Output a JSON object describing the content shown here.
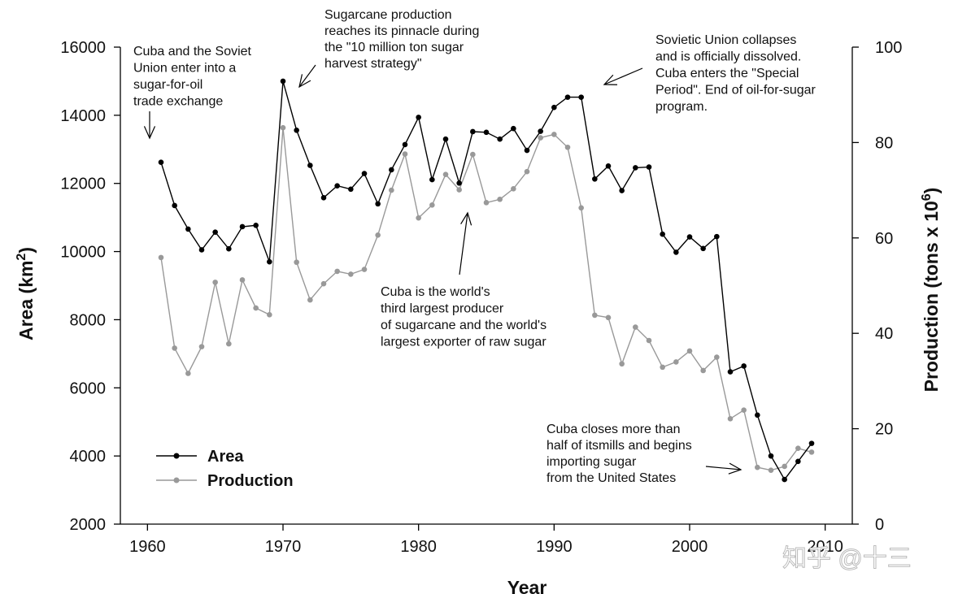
{
  "chart_data": {
    "type": "line",
    "xlabel": "Year",
    "ylabel_left": "Area (km²)",
    "ylabel_left_base": "Area (km",
    "ylabel_left_sup": "2",
    "ylabel_left_end": ")",
    "ylabel_right_base": "Production (tons x 10",
    "ylabel_right_sup": "6",
    "ylabel_right_end": ")",
    "xlim": [
      1958,
      2012
    ],
    "ylim_left": [
      2000,
      16000
    ],
    "ylim_right": [
      0,
      100
    ],
    "xticks": [
      1960,
      1970,
      1980,
      1990,
      2000,
      2010
    ],
    "yticks_left": [
      2000,
      4000,
      6000,
      8000,
      10000,
      12000,
      14000,
      16000
    ],
    "yticks_right": [
      0,
      20,
      40,
      60,
      80,
      100
    ],
    "grid": false,
    "legend_position": "bottom-left",
    "series": [
      {
        "name": "Area",
        "axis": "left",
        "color": "#000000",
        "x": [
          1961,
          1962,
          1963,
          1964,
          1965,
          1966,
          1967,
          1968,
          1969,
          1970,
          1971,
          1972,
          1973,
          1974,
          1975,
          1976,
          1977,
          1978,
          1979,
          1980,
          1981,
          1982,
          1983,
          1984,
          1985,
          1986,
          1987,
          1988,
          1989,
          1990,
          1991,
          1992,
          1993,
          1994,
          1995,
          1996,
          1997,
          1998,
          1999,
          2000,
          2001,
          2002,
          2003,
          2004,
          2005,
          2006,
          2007,
          2008,
          2009
        ],
        "values": [
          12620,
          11350,
          10660,
          10050,
          10570,
          10080,
          10730,
          10770,
          9700,
          15000,
          13560,
          12530,
          11580,
          11930,
          11830,
          12290,
          11400,
          12400,
          13140,
          13940,
          12110,
          13300,
          12010,
          13520,
          13500,
          13300,
          13610,
          12970,
          13530,
          14230,
          14530,
          14530,
          12130,
          12510,
          11790,
          12460,
          12480,
          10510,
          9980,
          10430,
          10090,
          10440,
          6470,
          6640,
          5200,
          4000,
          3310,
          3840,
          4370
        ]
      },
      {
        "name": "Production",
        "axis": "right",
        "color": "#999999",
        "x": [
          1961,
          1962,
          1963,
          1964,
          1965,
          1966,
          1967,
          1968,
          1969,
          1970,
          1971,
          1972,
          1973,
          1974,
          1975,
          1976,
          1977,
          1978,
          1979,
          1980,
          1981,
          1982,
          1983,
          1984,
          1985,
          1986,
          1987,
          1988,
          1989,
          1990,
          1991,
          1992,
          1993,
          1994,
          1995,
          1996,
          1997,
          1998,
          1999,
          2000,
          2001,
          2002,
          2003,
          2004,
          2005,
          2006,
          2007,
          2008,
          2009
        ],
        "values": [
          55.9,
          36.9,
          31.6,
          37.2,
          50.7,
          37.8,
          51.2,
          45.3,
          43.9,
          83.1,
          54.9,
          47.0,
          50.4,
          53.0,
          52.4,
          53.4,
          60.6,
          70.0,
          77.6,
          64.2,
          66.9,
          73.3,
          70.1,
          77.5,
          67.4,
          68.1,
          70.3,
          73.9,
          81.0,
          81.7,
          79.0,
          66.3,
          43.8,
          43.3,
          33.6,
          41.3,
          38.5,
          32.9,
          34.0,
          36.3,
          32.2,
          35.0,
          22.1,
          23.9,
          11.9,
          11.3,
          12.1,
          15.9,
          15.1
        ]
      }
    ],
    "annotations": [
      {
        "id": "soviet-trade",
        "lines": [
          "Cuba and the Soviet",
          "Union enter into a",
          "sugar-for-oil",
          "trade exchange"
        ]
      },
      {
        "id": "pinnacle",
        "lines": [
          "Sugarcane production",
          "reaches its pinnacle during",
          "the \"10 million ton sugar",
          "harvest strategy\""
        ]
      },
      {
        "id": "collapse",
        "lines": [
          "Sovietic Union collapses",
          "and is officially dissolved.",
          "Cuba enters the \"Special",
          "Period\". End of oil-for-sugar",
          "program."
        ]
      },
      {
        "id": "third-largest",
        "lines": [
          "Cuba is the world's",
          "third largest producer",
          "of sugarcane and the world's",
          "largest exporter of raw sugar"
        ]
      },
      {
        "id": "mills-close",
        "lines": [
          "Cuba closes more than",
          "half of itsmills and begins",
          "importing sugar",
          "from  the United States"
        ]
      }
    ]
  },
  "watermark": "知乎 @十三"
}
